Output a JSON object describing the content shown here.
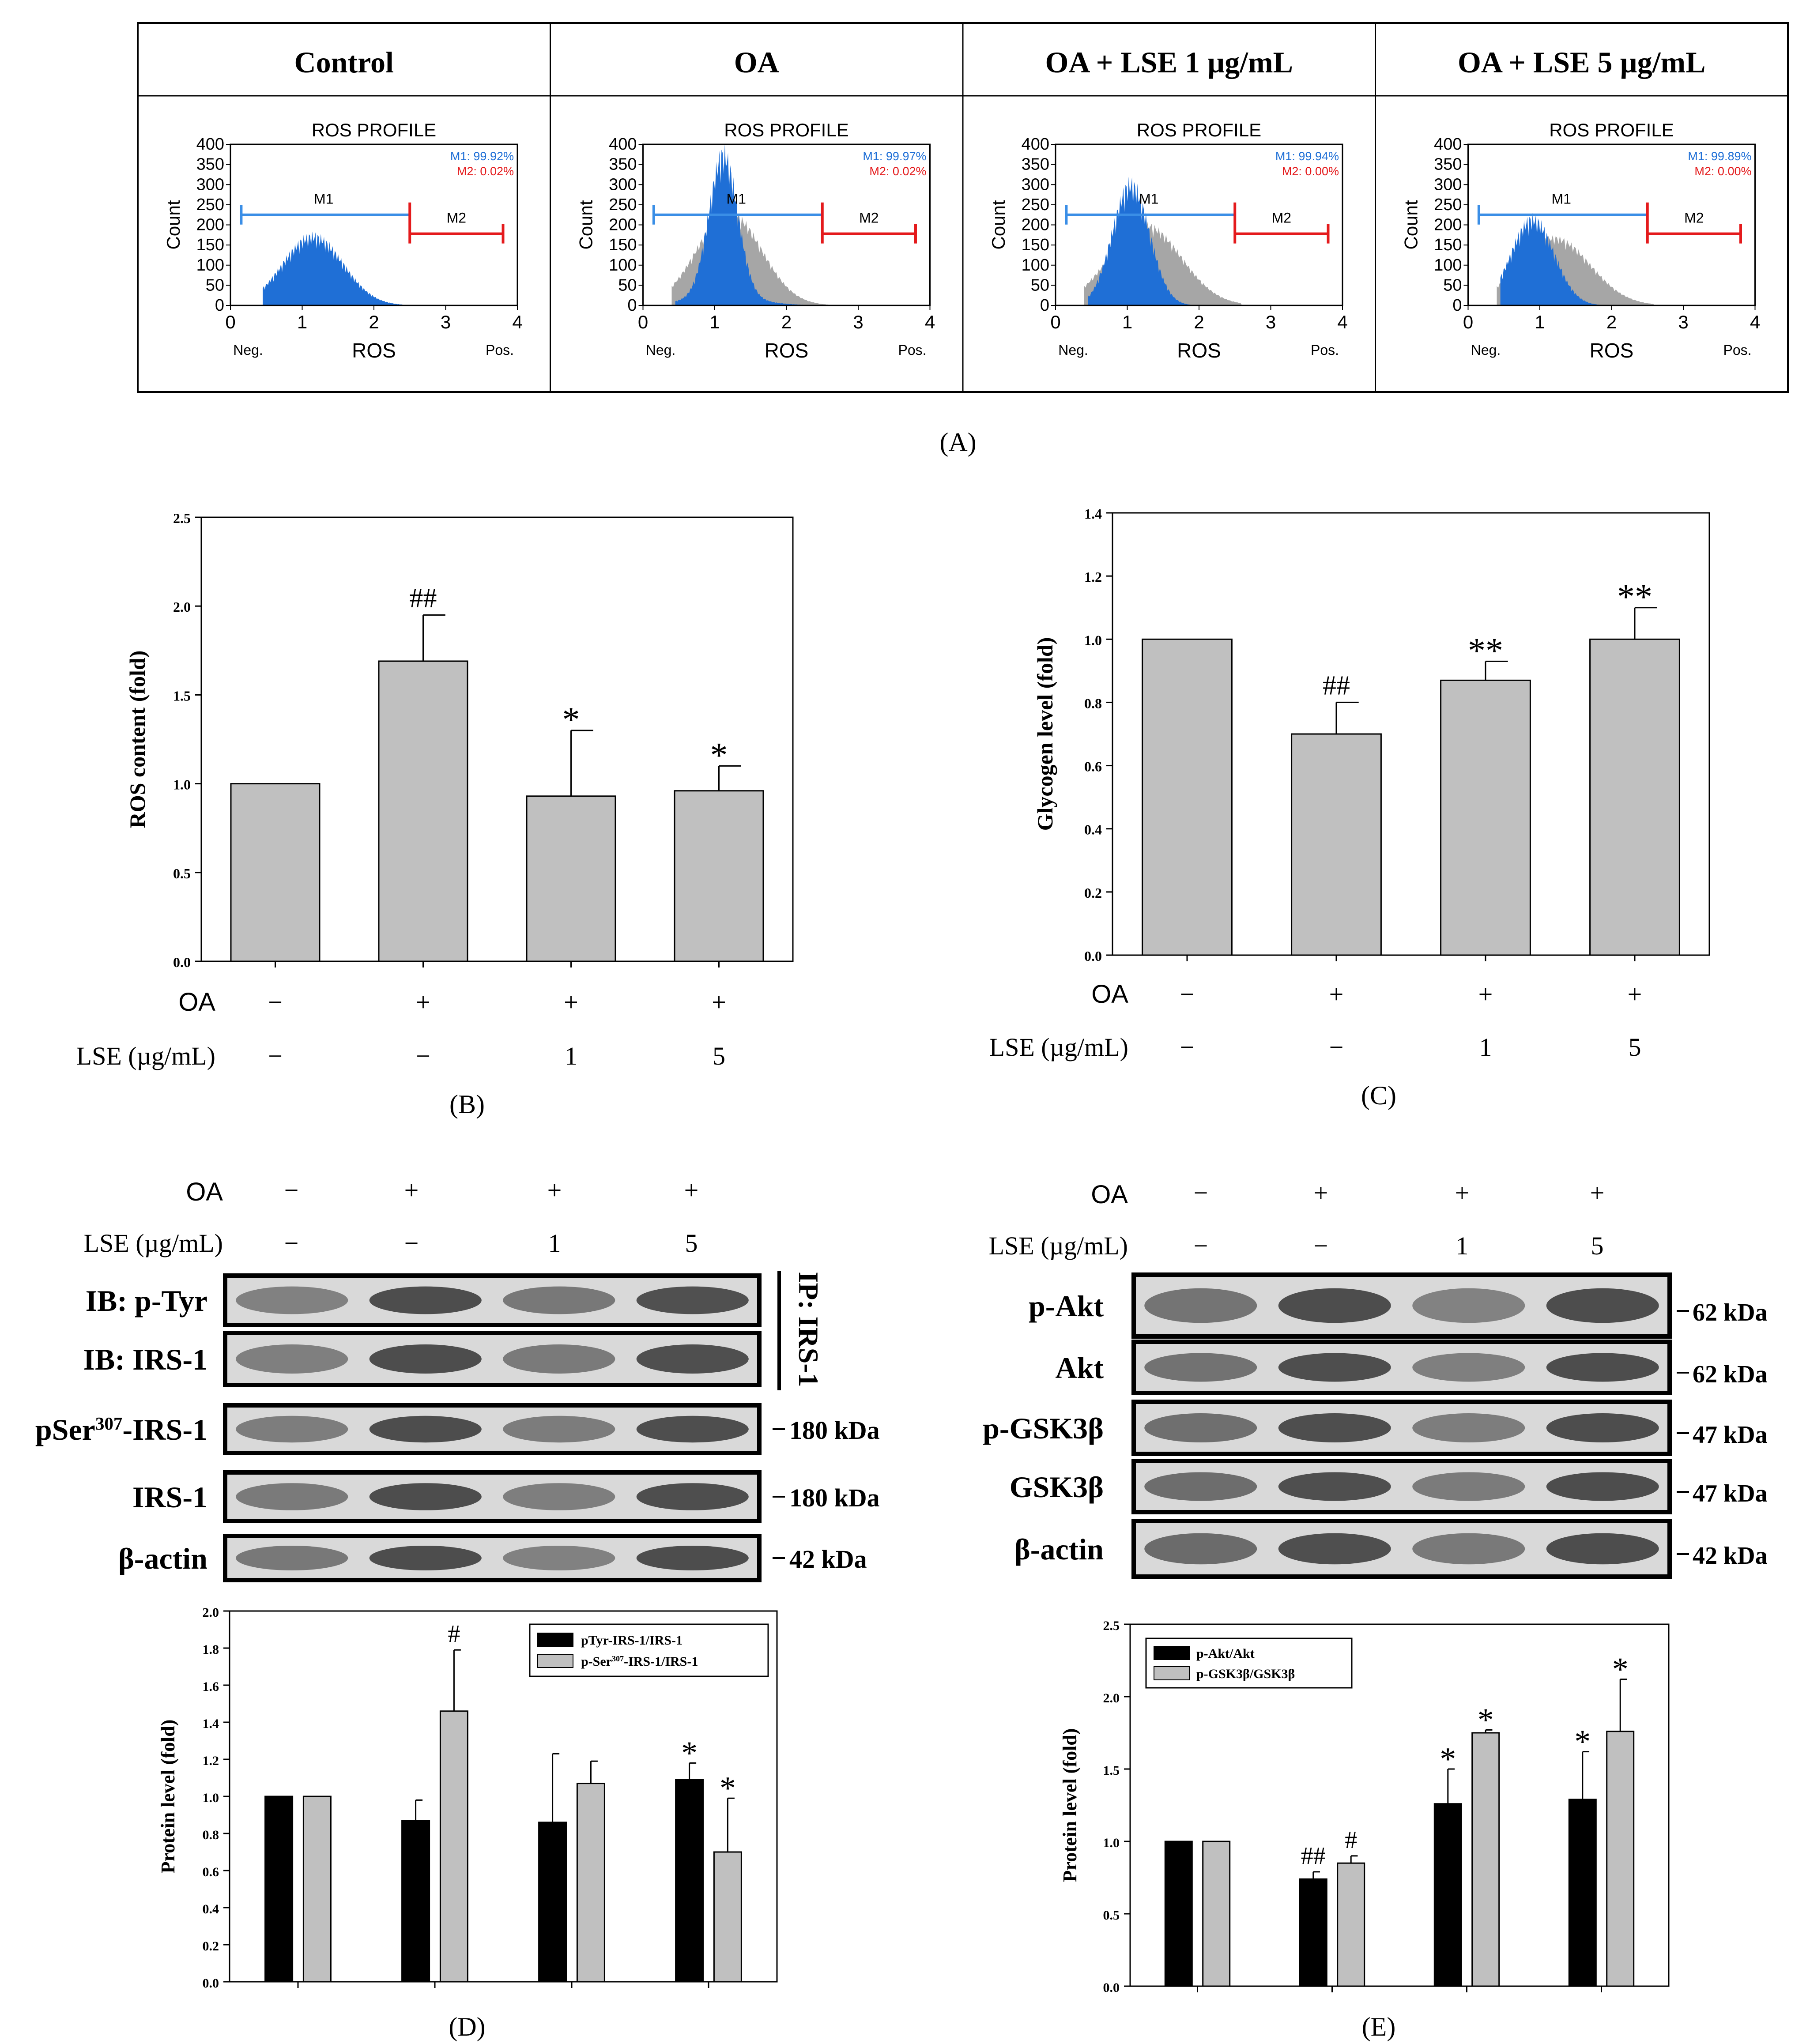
{
  "panel_labels": {
    "A": "(A)",
    "B": "(B)",
    "C": "(C)",
    "D": "(D)",
    "E": "(E)"
  },
  "flow": {
    "headers": [
      "Control",
      "OA",
      "OA + LSE 1 µg/mL",
      "OA + LSE 5 µg/mL"
    ],
    "plot_title": "ROS PROFILE",
    "ylabel": "Count",
    "xlabel": "ROS",
    "neg_label": "Neg.",
    "pos_label": "Pos.",
    "y_ticks": [
      "0",
      "50",
      "100",
      "150",
      "200",
      "250",
      "300",
      "350",
      "400"
    ],
    "x_ticks": [
      "0",
      "1",
      "2",
      "3",
      "4"
    ],
    "m1_label": "M1",
    "m2_label": "M2",
    "m1_stats": [
      "M1: 99.92%",
      "M1: 99.97%",
      "M1: 99.94%",
      "M1: 99.89%"
    ],
    "m2_stats": [
      "M2: 0.02%",
      "M2: 0.02%",
      "M2: 0.00%",
      "M2: 0.00%"
    ],
    "colors": {
      "blue": "#1f6fd6",
      "gray": "#a6a6a6",
      "red": "#e41a1c",
      "m1line": "#3a8ee6"
    }
  },
  "treatments": {
    "oa_label": "OA",
    "lse_label": "LSE (µg/mL)",
    "oa": [
      "−",
      "+",
      "+",
      "+"
    ],
    "lse": [
      "−",
      "−",
      "1",
      "5"
    ]
  },
  "chart_data": [
    {
      "id": "B",
      "type": "bar",
      "categories": [
        "Control",
        "OA",
        "OA + LSE 1",
        "OA + LSE 5"
      ],
      "values": [
        1.0,
        1.69,
        0.93,
        0.96
      ],
      "errors": [
        0,
        0.26,
        0.37,
        0.14
      ],
      "annotations": [
        "",
        "##",
        "*",
        "*"
      ],
      "ylabel": "ROS content (fold)",
      "ylim": [
        0,
        2.5
      ],
      "yticks": [
        "0.0",
        "0.5",
        "1.0",
        "1.5",
        "2.0",
        "2.5"
      ],
      "color": "#c0c0c0"
    },
    {
      "id": "C",
      "type": "bar",
      "categories": [
        "Control",
        "OA",
        "OA + LSE 1",
        "OA + LSE 5"
      ],
      "values": [
        1.0,
        0.7,
        0.87,
        1.0
      ],
      "errors": [
        0,
        0.1,
        0.06,
        0.1
      ],
      "annotations": [
        "",
        "##",
        "**",
        "**"
      ],
      "ylabel": "Glycogen level (fold)",
      "ylim": [
        0,
        1.4
      ],
      "yticks": [
        "0.0",
        "0.2",
        "0.4",
        "0.6",
        "0.8",
        "1.0",
        "1.2",
        "1.4"
      ],
      "color": "#c0c0c0"
    },
    {
      "id": "D",
      "type": "bar",
      "categories": [
        "Control",
        "OA",
        "OA + LSE 1",
        "OA + LSE 5"
      ],
      "series": [
        {
          "name": "pTyr-IRS-1/IRS-1",
          "color": "#000000",
          "values": [
            1.0,
            0.87,
            0.86,
            1.09
          ],
          "errors": [
            0,
            0.11,
            0.37,
            0.09
          ],
          "annotations": [
            "",
            "",
            "",
            "*"
          ]
        },
        {
          "name": "p-Ser307-IRS-1/IRS-1",
          "color": "#c0c0c0",
          "values": [
            1.0,
            1.46,
            1.07,
            0.7
          ],
          "errors": [
            0,
            0.33,
            0.12,
            0.29
          ],
          "annotations": [
            "",
            "#",
            "",
            "*"
          ]
        }
      ],
      "ylabel": "Protein level (fold)",
      "ylim": [
        0,
        2.0
      ],
      "yticks": [
        "0.0",
        "0.2",
        "0.4",
        "0.6",
        "0.8",
        "1.0",
        "1.2",
        "1.4",
        "1.6",
        "1.8",
        "2.0"
      ]
    },
    {
      "id": "E",
      "type": "bar",
      "categories": [
        "Control",
        "OA",
        "OA + LSE 1",
        "OA + LSE 5"
      ],
      "series": [
        {
          "name": "p-Akt/Akt",
          "color": "#000000",
          "values": [
            1.0,
            0.74,
            1.26,
            1.29
          ],
          "errors": [
            0,
            0.05,
            0.24,
            0.33
          ],
          "annotations": [
            "",
            "##",
            "*",
            "*"
          ]
        },
        {
          "name": "p-GSK3β/GSK3β",
          "color": "#c0c0c0",
          "values": [
            1.0,
            0.85,
            1.75,
            1.76
          ],
          "errors": [
            0,
            0.05,
            0.02,
            0.36
          ],
          "annotations": [
            "",
            "#",
            "*",
            "*"
          ]
        }
      ],
      "ylabel": "Protein level (fold)",
      "ylim": [
        0,
        2.5
      ],
      "yticks": [
        "0.0",
        "0.5",
        "1.0",
        "1.5",
        "2.0",
        "2.5"
      ]
    }
  ],
  "blots_d": {
    "ip_label": "IP: IRS-1",
    "rows": [
      {
        "label": "IB: p-Tyr",
        "kda": ""
      },
      {
        "label": "IB: IRS-1",
        "kda": ""
      },
      {
        "label": "pSer307-IRS-1",
        "kda": "180 kDa"
      },
      {
        "label": "IRS-1",
        "kda": "180 kDa"
      },
      {
        "label": "β-actin",
        "kda": "42 kDa"
      }
    ]
  },
  "blots_e": {
    "rows": [
      {
        "label": "p-Akt",
        "kda": "62 kDa"
      },
      {
        "label": "Akt",
        "kda": "62 kDa"
      },
      {
        "label": "p-GSK3β",
        "kda": "47 kDa"
      },
      {
        "label": "GSK3β",
        "kda": "47 kDa"
      },
      {
        "label": "β-actin",
        "kda": "42 kDa"
      }
    ]
  }
}
